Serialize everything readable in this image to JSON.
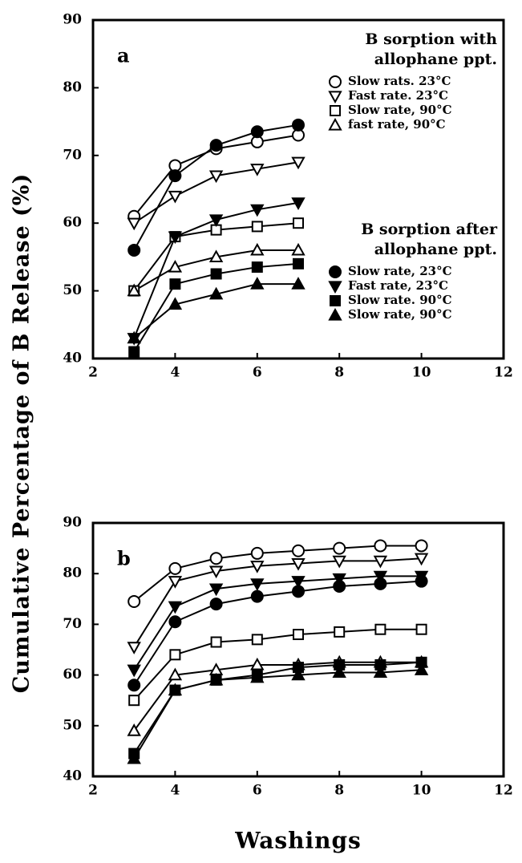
{
  "axis_labels": {
    "y": "Cumulative Percentage of B Release (%)",
    "x": "Washings"
  },
  "chart_data": [
    {
      "type": "line",
      "panel_label": "a",
      "color": "#000000",
      "x": [
        3,
        4,
        5,
        6,
        7
      ],
      "xlim": [
        2,
        12
      ],
      "xticks": [
        2,
        4,
        6,
        8,
        10,
        12
      ],
      "ylim": [
        40,
        90
      ],
      "yticks": [
        40,
        50,
        60,
        70,
        80,
        90
      ],
      "groups": [
        {
          "title_lines": [
            "B sorption with",
            "allophane ppt."
          ],
          "series": [
            {
              "name": "Slow rats. 23°C",
              "marker": "circle",
              "filled": false,
              "values": [
                61,
                68.5,
                71,
                72,
                73
              ]
            },
            {
              "name": "Fast rate. 23°C",
              "marker": "triangle-down",
              "filled": false,
              "values": [
                60,
                64,
                67,
                68,
                69
              ]
            },
            {
              "name": "Slow rate, 90°C",
              "marker": "square",
              "filled": false,
              "values": [
                50,
                58,
                59,
                59.5,
                60
              ]
            },
            {
              "name": "fast rate, 90°C",
              "marker": "triangle-up",
              "filled": false,
              "values": [
                50,
                53.5,
                55,
                56,
                56
              ]
            }
          ]
        },
        {
          "title_lines": [
            "B sorption after",
            "allophane ppt."
          ],
          "series": [
            {
              "name": "Slow rate, 23°C",
              "marker": "circle",
              "filled": true,
              "values": [
                56,
                67,
                71.5,
                73.5,
                74.5
              ]
            },
            {
              "name": "Fast rate, 23°C",
              "marker": "triangle-down",
              "filled": true,
              "values": [
                43,
                58,
                60.5,
                62,
                63
              ]
            },
            {
              "name": "Slow rate. 90°C",
              "marker": "square",
              "filled": true,
              "values": [
                41,
                51,
                52.5,
                53.5,
                54
              ]
            },
            {
              "name": "Slow rate, 90°C",
              "marker": "triangle-up",
              "filled": true,
              "values": [
                43,
                48,
                49.5,
                51,
                51
              ]
            }
          ]
        }
      ]
    },
    {
      "type": "line",
      "panel_label": "b",
      "color": "#000000",
      "x": [
        3,
        4,
        5,
        6,
        7,
        8,
        9,
        10
      ],
      "xlim": [
        2,
        12
      ],
      "xticks": [
        2,
        4,
        6,
        8,
        10,
        12
      ],
      "ylim": [
        40,
        90
      ],
      "yticks": [
        40,
        50,
        60,
        70,
        80,
        90
      ],
      "series": [
        {
          "marker": "circle",
          "filled": false,
          "values": [
            74.5,
            81,
            83,
            84,
            84.5,
            85,
            85.5,
            85.5
          ]
        },
        {
          "marker": "triangle-down",
          "filled": false,
          "values": [
            65.5,
            78.5,
            80.5,
            81.5,
            82,
            82.5,
            82.5,
            83
          ]
        },
        {
          "marker": "triangle-down",
          "filled": true,
          "values": [
            61,
            73.5,
            77,
            78,
            78.5,
            79,
            79.5,
            79.5
          ]
        },
        {
          "marker": "circle",
          "filled": true,
          "values": [
            58,
            70.5,
            74,
            75.5,
            76.5,
            77.5,
            78,
            78.5
          ]
        },
        {
          "marker": "square",
          "filled": false,
          "values": [
            55,
            64,
            66.5,
            67,
            68,
            68.5,
            69,
            69
          ]
        },
        {
          "marker": "triangle-up",
          "filled": false,
          "values": [
            49,
            60,
            61,
            62,
            62,
            62.5,
            62.5,
            62.5
          ]
        },
        {
          "marker": "square",
          "filled": true,
          "values": [
            44.5,
            57,
            59,
            60,
            61.5,
            62,
            62,
            62.5
          ]
        },
        {
          "marker": "triangle-up",
          "filled": true,
          "values": [
            43.5,
            57,
            59,
            59.5,
            60,
            60.5,
            60.5,
            61
          ]
        }
      ]
    }
  ]
}
